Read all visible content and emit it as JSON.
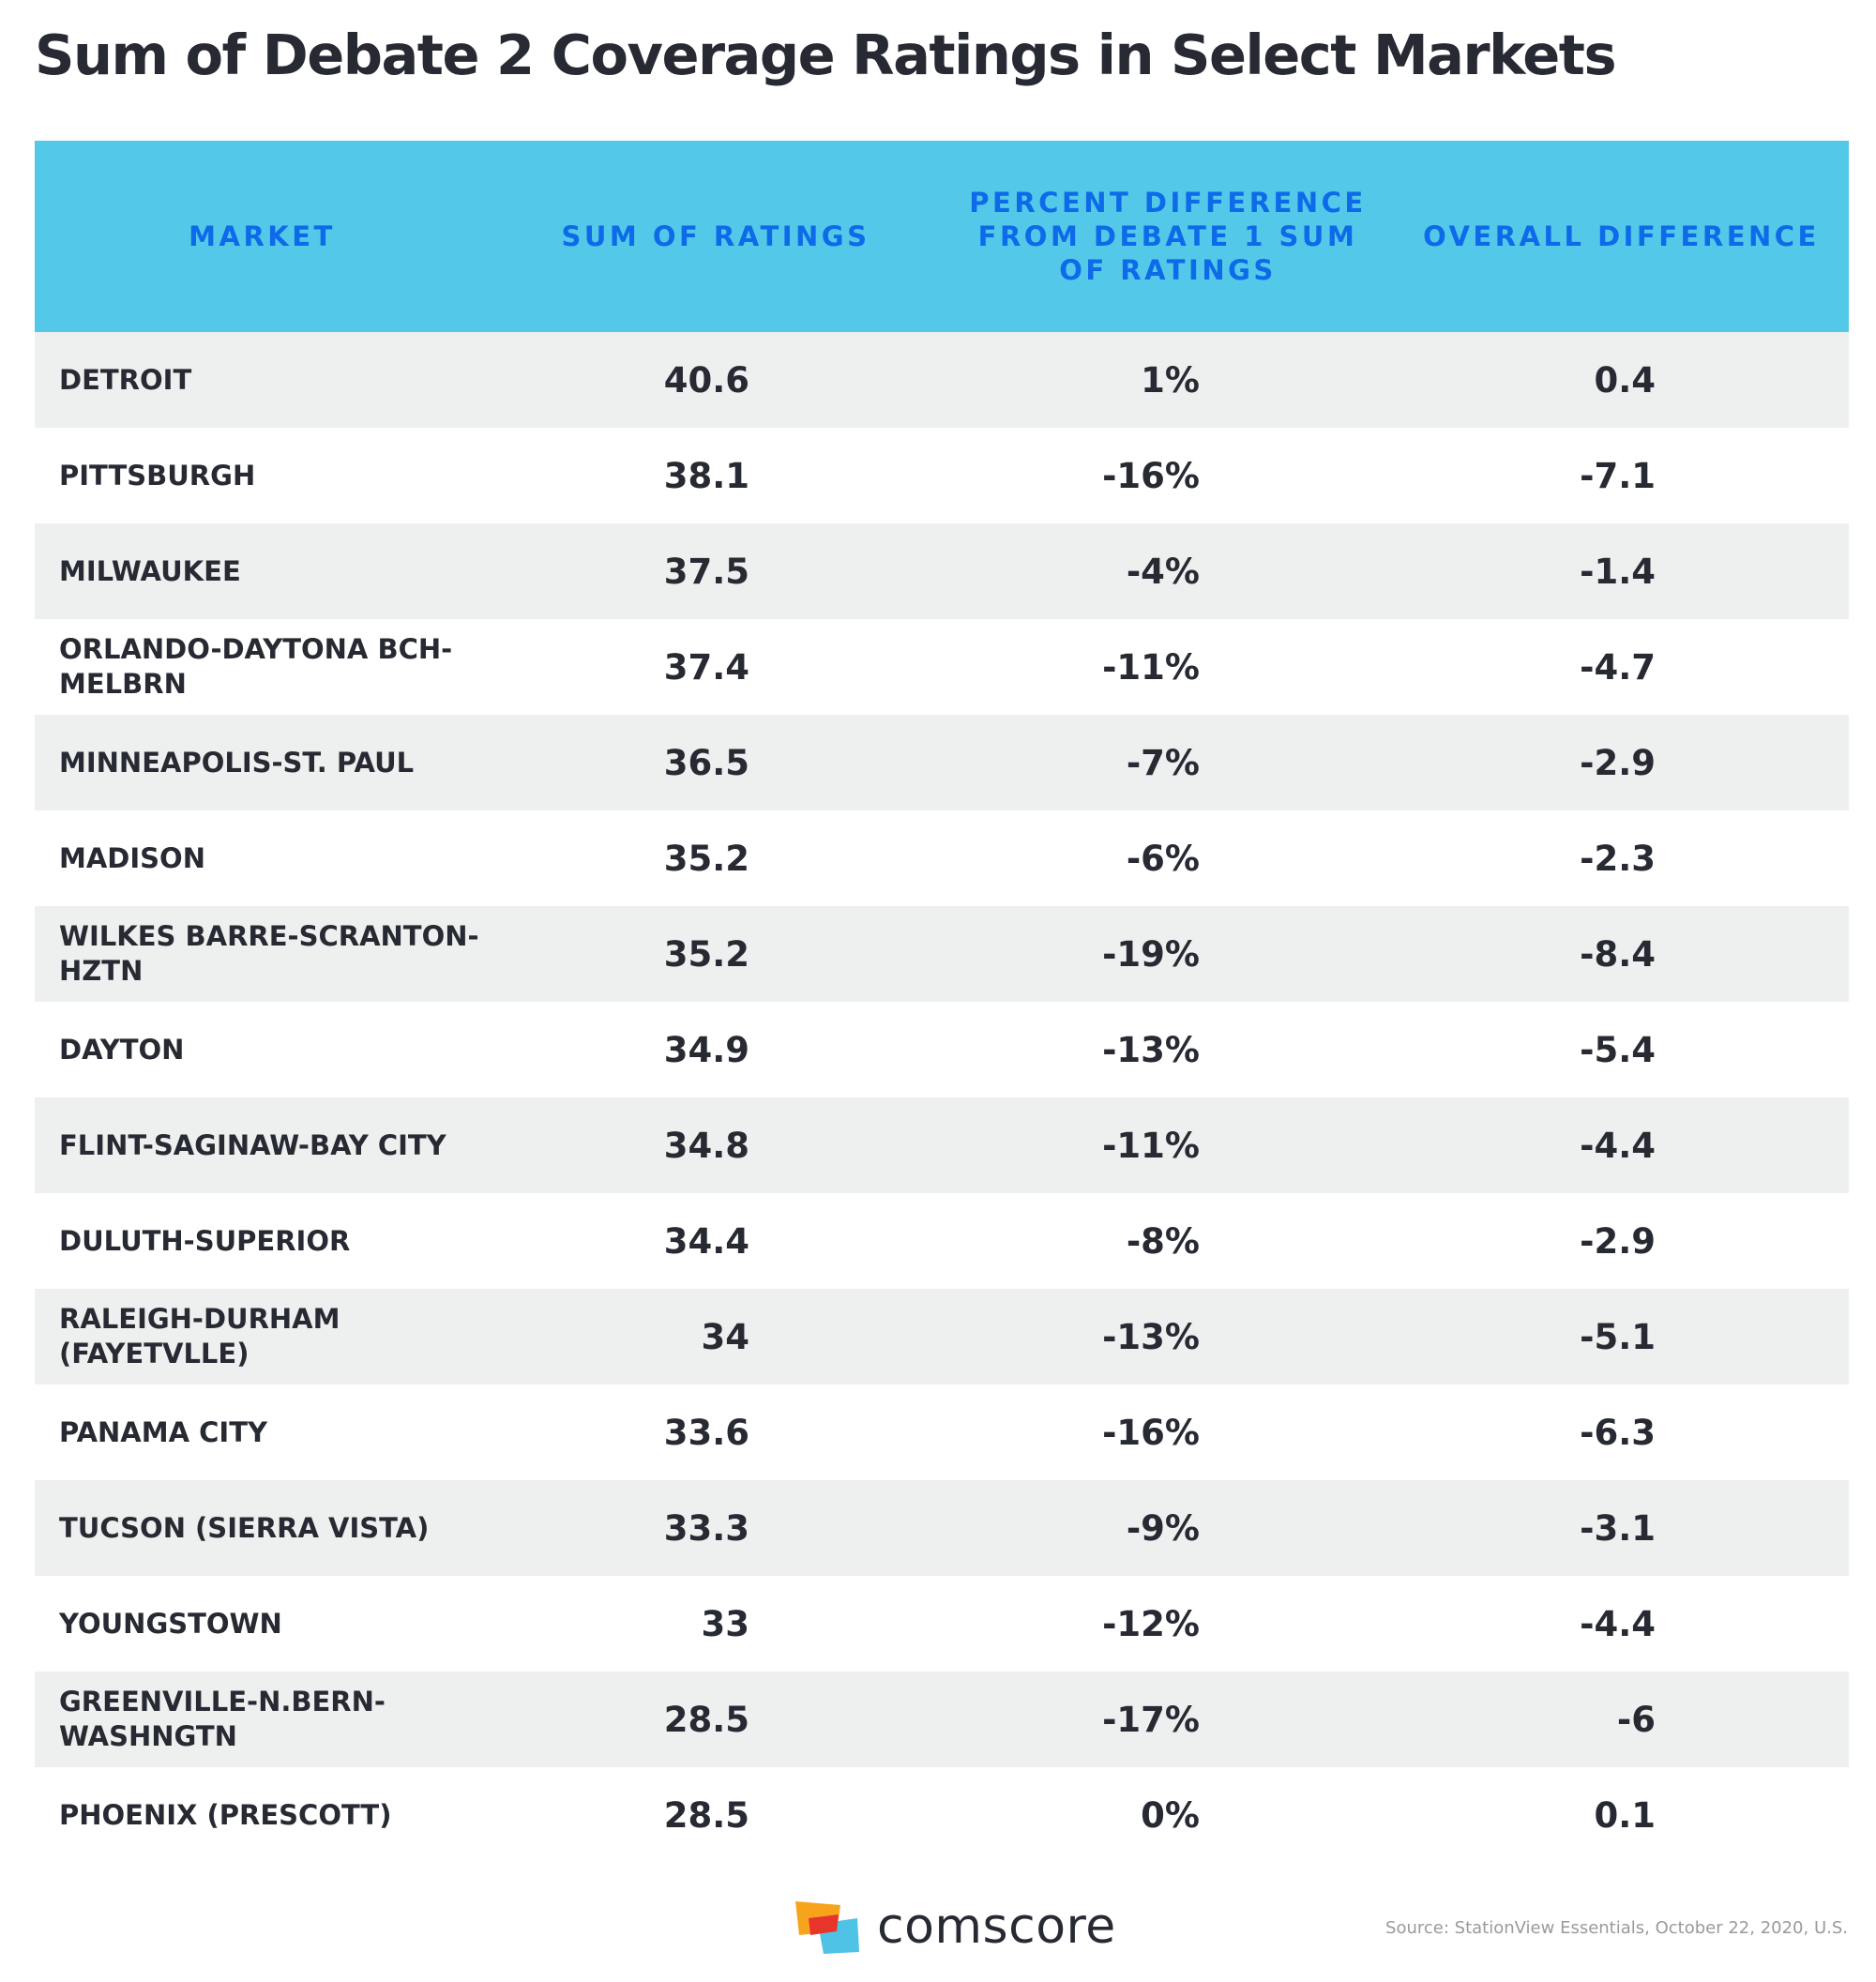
{
  "title": "Sum of Debate 2 Coverage Ratings in Select Markets",
  "chart_data": {
    "type": "table",
    "columns": [
      "MARKET",
      "SUM OF RATINGS",
      "PERCENT DIFFERENCE FROM DEBATE 1 SUM OF RATINGS",
      "OVERALL DIFFERENCE"
    ],
    "rows": [
      {
        "market": "DETROIT",
        "sum": "40.6",
        "pct": "1%",
        "overall": "0.4"
      },
      {
        "market": "PITTSBURGH",
        "sum": "38.1",
        "pct": "-16%",
        "overall": "-7.1"
      },
      {
        "market": "MILWAUKEE",
        "sum": "37.5",
        "pct": "-4%",
        "overall": "-1.4"
      },
      {
        "market": "ORLANDO-DAYTONA BCH-MELBRN",
        "sum": "37.4",
        "pct": "-11%",
        "overall": "-4.7"
      },
      {
        "market": "MINNEAPOLIS-ST. PAUL",
        "sum": "36.5",
        "pct": "-7%",
        "overall": "-2.9"
      },
      {
        "market": "MADISON",
        "sum": "35.2",
        "pct": "-6%",
        "overall": "-2.3"
      },
      {
        "market": "WILKES BARRE-SCRANTON-HZTN",
        "sum": "35.2",
        "pct": "-19%",
        "overall": "-8.4"
      },
      {
        "market": "DAYTON",
        "sum": "34.9",
        "pct": "-13%",
        "overall": "-5.4"
      },
      {
        "market": "FLINT-SAGINAW-BAY CITY",
        "sum": "34.8",
        "pct": "-11%",
        "overall": "-4.4"
      },
      {
        "market": "DULUTH-SUPERIOR",
        "sum": "34.4",
        "pct": "-8%",
        "overall": "-2.9"
      },
      {
        "market": "RALEIGH-DURHAM (FAYETVLLE)",
        "sum": "34",
        "pct": "-13%",
        "overall": "-5.1"
      },
      {
        "market": "PANAMA CITY",
        "sum": "33.6",
        "pct": "-16%",
        "overall": "-6.3"
      },
      {
        "market": "TUCSON (SIERRA VISTA)",
        "sum": "33.3",
        "pct": "-9%",
        "overall": "-3.1"
      },
      {
        "market": "YOUNGSTOWN",
        "sum": "33",
        "pct": "-12%",
        "overall": "-4.4"
      },
      {
        "market": "GREENVILLE-N.BERN-WASHNGTN",
        "sum": "28.5",
        "pct": "-17%",
        "overall": "-6"
      },
      {
        "market": "PHOENIX (PRESCOTT)",
        "sum": "28.5",
        "pct": "0%",
        "overall": "0.1"
      }
    ]
  },
  "footer": {
    "brand": "comscore",
    "source": "Source: StationView Essentials, October 22, 2020, U.S."
  },
  "colors": {
    "header_bg": "#54c8e8",
    "header_text": "#0d6ae8",
    "row_shade": "#eef0ef",
    "text": "#272a33",
    "logo_orange": "#f7a41d",
    "logo_red": "#e8352c",
    "logo_blue": "#4fc3e6"
  }
}
